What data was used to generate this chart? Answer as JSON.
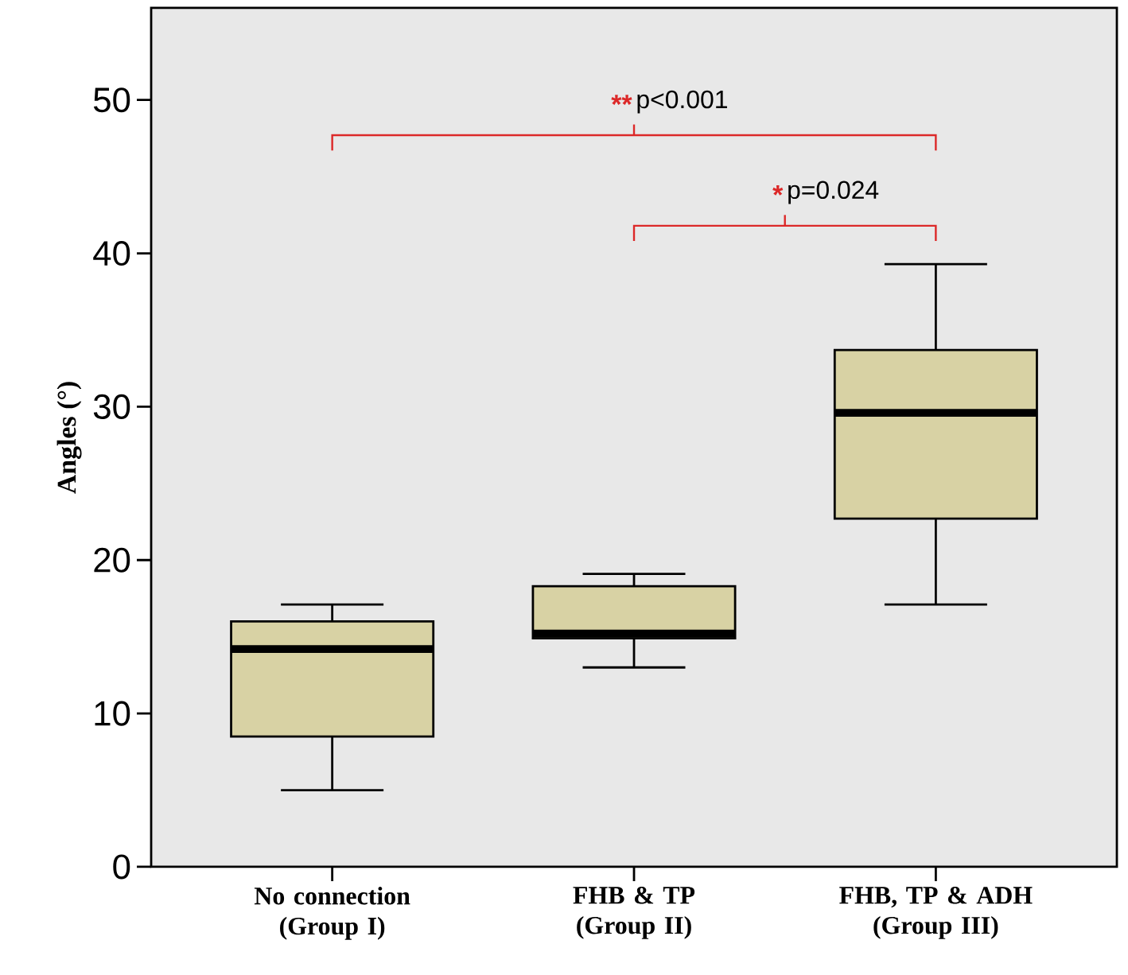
{
  "chart_data": {
    "type": "box",
    "ylabel": "Angles (°)",
    "categories": [
      "No connection (Group I)",
      "FHB & TP (Group II)",
      "FHB, TP & ADH (Group III)"
    ],
    "boxes": [
      {
        "low": 5,
        "q1": 8.5,
        "median": 14.2,
        "q3": 16,
        "high": 17.1
      },
      {
        "low": 13,
        "q1": 14.9,
        "median": 15.2,
        "q3": 18.3,
        "high": 19.1
      },
      {
        "low": 17.1,
        "q1": 22.7,
        "median": 29.6,
        "q3": 33.7,
        "high": 39.3
      }
    ],
    "color": "#d8d2a4",
    "ylim": [
      0,
      56
    ],
    "yticks": [
      0,
      10,
      20,
      30,
      40,
      50
    ],
    "annotations": [
      "**",
      "p<0.001",
      "*",
      "p=0.024"
    ]
  }
}
